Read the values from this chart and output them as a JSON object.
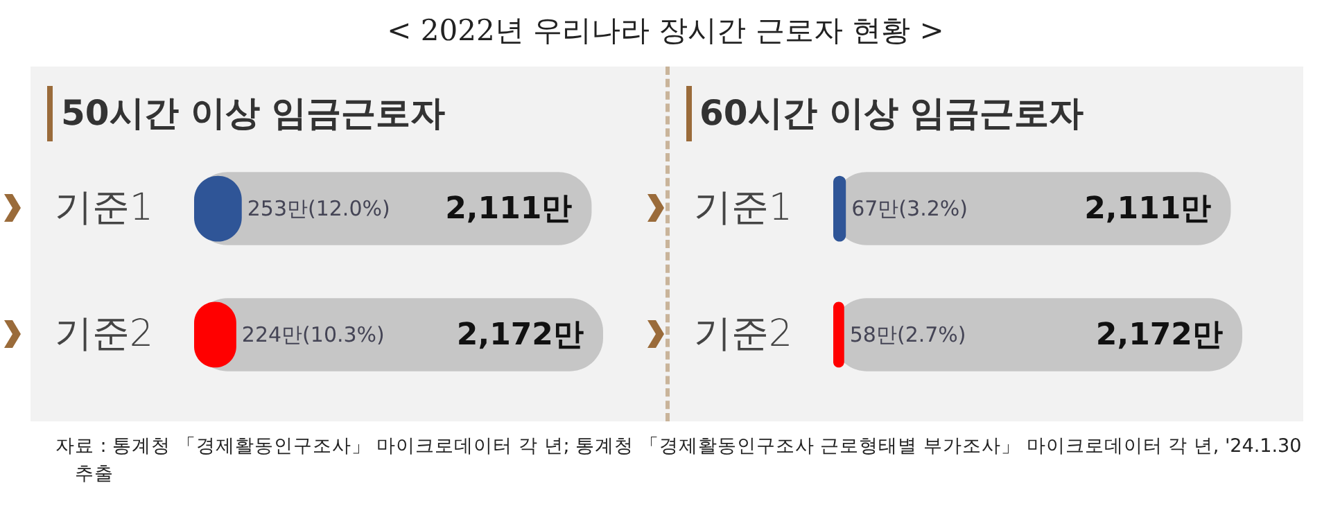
{
  "chart_data": [
    {
      "type": "other",
      "title": "< 2022년 우리나라 장시간 근로자 현황 >"
    },
    {
      "type": "bar",
      "orientation": "horizontal",
      "title": "50시간 이상 임금근로자",
      "categories": [
        "기준1",
        "기준2"
      ],
      "tick_labels": "y",
      "series": [
        {
          "color": "#c6c6c6",
          "values": [
            2111,
            2172
          ],
          "value_labels": [
            "2,111만",
            "2,172만"
          ]
        },
        {
          "colors": [
            "#2f5597",
            "#ff0000"
          ],
          "values": [
            253,
            224
          ],
          "value_labels": [
            "253만(12.0%)",
            "224만(10.3%)"
          ]
        }
      ]
    },
    {
      "type": "bar",
      "orientation": "horizontal",
      "title": "60시간 이상 임금근로자",
      "categories": [
        "기준1",
        "기준2"
      ],
      "tick_labels": "y",
      "series": [
        {
          "color": "#c6c6c6",
          "values": [
            2111,
            2172
          ],
          "value_labels": [
            "2,111만",
            "2,172만"
          ]
        },
        {
          "colors": [
            "#2f5597",
            "#ff0000"
          ],
          "values": [
            67,
            58
          ],
          "value_labels": [
            "67만(3.2%)",
            "58만(2.7%)"
          ]
        }
      ]
    },
    {
      "type": "other",
      "annotations": [
        "자료 : 통계청 「경제활동인구조사」 마이크로데이터 각 년; 통계청 「경제활동인구조사 근로형태별 부가조사」 마이크로데이터 각 년, '24.1.30 추출"
      ]
    }
  ]
}
